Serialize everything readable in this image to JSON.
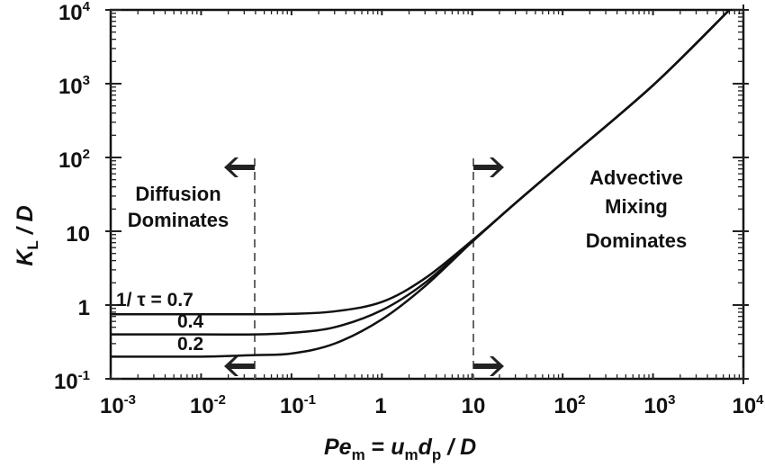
{
  "chart_data": {
    "type": "line",
    "title": "",
    "xlabel": "Pe_m = u_m d_p / D",
    "ylabel": "K_L / D",
    "xscale": "log",
    "yscale": "log",
    "xlim": [
      0.001,
      10000
    ],
    "ylim": [
      0.1,
      10000
    ],
    "grid": false,
    "x_ticks": [
      "10-3",
      "10-2",
      "10-1",
      "1",
      "10",
      "102",
      "103",
      "104"
    ],
    "y_ticks": [
      "10-1",
      "1",
      "10",
      "102",
      "103",
      "104"
    ],
    "x": [
      0.001,
      0.01,
      0.04,
      0.1,
      0.3,
      1,
      3,
      10,
      30,
      100,
      1000,
      7000
    ],
    "series": [
      {
        "name": "1/τ = 0.7",
        "values": [
          0.75,
          0.75,
          0.75,
          0.76,
          0.82,
          1.1,
          2.3,
          7.5,
          24,
          85,
          950,
          10000
        ]
      },
      {
        "name": "0.4",
        "values": [
          0.4,
          0.4,
          0.4,
          0.42,
          0.5,
          0.85,
          2.0,
          7.3,
          24,
          85,
          950,
          10000
        ]
      },
      {
        "name": "0.2",
        "values": [
          0.2,
          0.2,
          0.21,
          0.22,
          0.3,
          0.64,
          1.8,
          7.2,
          24,
          85,
          950,
          10000
        ]
      }
    ],
    "annotations": [
      {
        "text": "Diffusion Dominates",
        "region": "Pe_m < 0.04",
        "arrow": "left"
      },
      {
        "text": "Advective Mixing Dominates",
        "region": "Pe_m > 10",
        "arrow": "right"
      },
      {
        "text": "1/ τ = 0.7",
        "target": "top curve"
      },
      {
        "text": "0.4",
        "target": "middle curve"
      },
      {
        "text": "0.2",
        "target": "bottom curve"
      }
    ],
    "vertical_dashed_lines": [
      0.04,
      10
    ],
    "legend_position": "inline labels"
  },
  "labels": {
    "x_ticks": [
      {
        "base": "10",
        "exp": "-3"
      },
      {
        "base": "10",
        "exp": "-2"
      },
      {
        "base": "10",
        "exp": "-1"
      },
      {
        "base": "1",
        "exp": ""
      },
      {
        "base": "10",
        "exp": ""
      },
      {
        "base": "10",
        "exp": "2"
      },
      {
        "base": "10",
        "exp": "3"
      },
      {
        "base": "10",
        "exp": "4"
      }
    ],
    "y_ticks": [
      {
        "base": "10",
        "exp": "4"
      },
      {
        "base": "10",
        "exp": "3"
      },
      {
        "base": "10",
        "exp": "2"
      },
      {
        "base": "10",
        "exp": ""
      },
      {
        "base": "1",
        "exp": ""
      },
      {
        "base": "10",
        "exp": "-1"
      }
    ],
    "xlabel": {
      "pe": "Pe",
      "pe_sub": "m",
      "eq": " = ",
      "u": "u",
      "u_sub": "m",
      "d": "d",
      "d_sub": "p",
      "rest": " / D"
    },
    "ylabel": {
      "k": "K",
      "k_sub": "L",
      "rest": " / D"
    },
    "diffusion_line1": "Diffusion",
    "diffusion_line2": "Dominates",
    "advective_line1": "Advective",
    "advective_line2": "Mixing",
    "advective_line3": "Dominates",
    "curve_label_top": "1/ τ = 0.7",
    "curve_label_mid": "0.4",
    "curve_label_bot": "0.2"
  }
}
